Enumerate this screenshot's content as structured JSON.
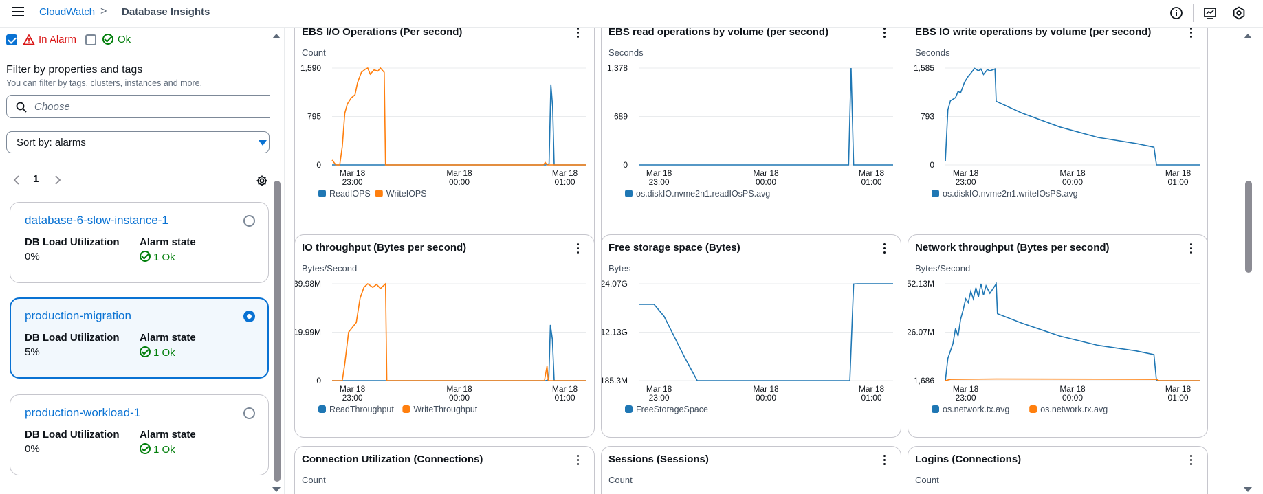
{
  "header": {
    "breadcrumb_root": "CloudWatch",
    "breadcrumb_separator": ">",
    "breadcrumb_current": "Database Insights"
  },
  "alarm_filter": {
    "in_alarm": "In Alarm",
    "in_alarm_checked": true,
    "ok": "Ok",
    "ok_checked": false
  },
  "filter": {
    "title": "Filter by properties and tags",
    "description": "You can filter by tags, clusters, instances and more.",
    "placeholder": "Choose",
    "sort_label": "Sort by: alarms"
  },
  "pagination": {
    "page": "1"
  },
  "instances": [
    {
      "name": "database-6-slow-instance-1",
      "load_header": "DB Load Utilization",
      "load_value": "0%",
      "alarm_header": "Alarm state",
      "alarm_value": "1 Ok",
      "selected": false
    },
    {
      "name": "production-migration",
      "load_header": "DB Load Utilization",
      "load_value": "5%",
      "alarm_header": "Alarm state",
      "alarm_value": "1 Ok",
      "selected": true
    },
    {
      "name": "production-workload-1",
      "load_header": "DB Load Utilization",
      "load_value": "0%",
      "alarm_header": "Alarm state",
      "alarm_value": "1 Ok",
      "selected": false
    }
  ],
  "colors": {
    "blue_series": "#1f77b4",
    "orange_series": "#ff7f0e",
    "link": "#0972d3",
    "ok": "#037f0c",
    "alarm": "#d91515"
  },
  "widgets": [
    {
      "title": "EBS I/O Operations (Per second)",
      "unit": "Count",
      "yticks": [
        "1,590",
        "795",
        "0"
      ],
      "xticks": [
        [
          "Mar 18",
          "23:00"
        ],
        [
          "Mar 18",
          "00:00"
        ],
        [
          "Mar 18",
          "01:00"
        ]
      ],
      "legend": [
        "ReadIOPS",
        "WriteIOPS"
      ]
    },
    {
      "title": "EBS read operations by volume (per second)",
      "unit": "Seconds",
      "yticks": [
        "1,378",
        "689",
        "0"
      ],
      "xticks": [
        [
          "Mar 18",
          "23:00"
        ],
        [
          "Mar 18",
          "00:00"
        ],
        [
          "Mar 18",
          "01:00"
        ]
      ],
      "legend": [
        "os.diskIO.nvme2n1.readIOsPS.avg"
      ]
    },
    {
      "title": "EBS IO write operations by volume (per second)",
      "unit": "Seconds",
      "yticks": [
        "1,585",
        "793",
        "0"
      ],
      "xticks": [
        [
          "Mar 18",
          "23:00"
        ],
        [
          "Mar 18",
          "00:00"
        ],
        [
          "Mar 18",
          "01:00"
        ]
      ],
      "legend": [
        "os.diskIO.nvme2n1.writeIOsPS.avg"
      ]
    },
    {
      "title": "IO throughput (Bytes per second)",
      "unit": "Bytes/Second",
      "yticks": [
        "39.98M",
        "19.99M",
        "0"
      ],
      "xticks": [
        [
          "Mar 18",
          "23:00"
        ],
        [
          "Mar 18",
          "00:00"
        ],
        [
          "Mar 18",
          "01:00"
        ]
      ],
      "legend": [
        "ReadThroughput",
        "WriteThroughput"
      ]
    },
    {
      "title": "Free storage space (Bytes)",
      "unit": "Bytes",
      "yticks": [
        "24.07G",
        "12.13G",
        "185.3M"
      ],
      "xticks": [
        [
          "Mar 18",
          "23:00"
        ],
        [
          "Mar 18",
          "00:00"
        ],
        [
          "Mar 18",
          "01:00"
        ]
      ],
      "legend": [
        "FreeStorageSpace"
      ]
    },
    {
      "title": "Network throughput (Bytes per second)",
      "unit": "Bytes/Second",
      "yticks": [
        "52.13M",
        "26.07M",
        "1,686"
      ],
      "xticks": [
        [
          "Mar 18",
          "23:00"
        ],
        [
          "Mar 18",
          "00:00"
        ],
        [
          "Mar 18",
          "01:00"
        ]
      ],
      "legend": [
        "os.network.tx.avg",
        "os.network.rx.avg"
      ]
    },
    {
      "title": "Connection Utilization (Connections)",
      "unit": "Count"
    },
    {
      "title": "Sessions (Sessions)",
      "unit": "Count"
    },
    {
      "title": "Logins (Connections)",
      "unit": "Count"
    }
  ],
  "chart_data": [
    {
      "type": "line",
      "title": "EBS I/O Operations (Per second)",
      "ylabel": "Count",
      "ylim": [
        0,
        1590
      ],
      "series": [
        {
          "name": "ReadIOPS",
          "color": "#1f77b4",
          "points": [
            [
              0,
              0
            ],
            [
              0.84,
              0
            ],
            [
              0.853,
              20
            ],
            [
              0.86,
              1320
            ],
            [
              0.867,
              950
            ],
            [
              0.873,
              0
            ],
            [
              1,
              0
            ]
          ]
        },
        {
          "name": "WriteIOPS",
          "color": "#ff7f0e",
          "points": [
            [
              0,
              80
            ],
            [
              0.015,
              0
            ],
            [
              0.03,
              0
            ],
            [
              0.04,
              300
            ],
            [
              0.05,
              850
            ],
            [
              0.06,
              1000
            ],
            [
              0.075,
              1100
            ],
            [
              0.09,
              1150
            ],
            [
              0.1,
              1350
            ],
            [
              0.115,
              1520
            ],
            [
              0.13,
              1570
            ],
            [
              0.14,
              1590
            ],
            [
              0.15,
              1490
            ],
            [
              0.165,
              1560
            ],
            [
              0.18,
              1540
            ],
            [
              0.19,
              1590
            ],
            [
              0.205,
              1520
            ],
            [
              0.21,
              0
            ],
            [
              0.83,
              0
            ],
            [
              0.838,
              40
            ],
            [
              0.845,
              0
            ],
            [
              1,
              0
            ]
          ]
        }
      ]
    },
    {
      "type": "line",
      "title": "EBS read operations by volume (per second)",
      "ylabel": "Seconds",
      "ylim": [
        0,
        1378
      ],
      "series": [
        {
          "name": "os.diskIO.nvme2n1.readIOsPS.avg",
          "color": "#1f77b4",
          "points": [
            [
              0,
              0
            ],
            [
              0.825,
              0
            ],
            [
              0.835,
              1378
            ],
            [
              0.845,
              0
            ],
            [
              1,
              0
            ]
          ]
        }
      ]
    },
    {
      "type": "line",
      "title": "EBS IO write operations by volume (per second)",
      "ylabel": "Seconds",
      "ylim": [
        0,
        1585
      ],
      "series": [
        {
          "name": "os.diskIO.nvme2n1.writeIOsPS.avg",
          "color": "#1f77b4",
          "points": [
            [
              0,
              60
            ],
            [
              0.01,
              900
            ],
            [
              0.02,
              1050
            ],
            [
              0.04,
              1100
            ],
            [
              0.05,
              1200
            ],
            [
              0.06,
              1180
            ],
            [
              0.075,
              1350
            ],
            [
              0.09,
              1450
            ],
            [
              0.1,
              1500
            ],
            [
              0.115,
              1580
            ],
            [
              0.13,
              1540
            ],
            [
              0.14,
              1570
            ],
            [
              0.15,
              1480
            ],
            [
              0.165,
              1560
            ],
            [
              0.175,
              1540
            ],
            [
              0.195,
              1570
            ],
            [
              0.2,
              1040
            ],
            [
              0.3,
              850
            ],
            [
              0.45,
              620
            ],
            [
              0.6,
              450
            ],
            [
              0.75,
              350
            ],
            [
              0.82,
              290
            ],
            [
              0.83,
              0
            ],
            [
              1,
              0
            ]
          ]
        }
      ]
    },
    {
      "type": "line",
      "title": "IO throughput (Bytes per second)",
      "ylabel": "Bytes/Second",
      "ylim": [
        0,
        39980000
      ],
      "series": [
        {
          "name": "ReadThroughput",
          "color": "#1f77b4",
          "points": [
            [
              0,
              0
            ],
            [
              0.84,
              0
            ],
            [
              0.852,
              400000
            ],
            [
              0.858,
              23000000
            ],
            [
              0.866,
              17000000
            ],
            [
              0.873,
              0
            ],
            [
              1,
              0
            ]
          ]
        },
        {
          "name": "WriteThroughput",
          "color": "#ff7f0e",
          "points": [
            [
              0,
              0
            ],
            [
              0.04,
              0
            ],
            [
              0.05,
              7000000
            ],
            [
              0.065,
              20000000
            ],
            [
              0.08,
              22000000
            ],
            [
              0.095,
              24000000
            ],
            [
              0.11,
              34000000
            ],
            [
              0.125,
              38500000
            ],
            [
              0.14,
              39980000
            ],
            [
              0.16,
              38500000
            ],
            [
              0.175,
              39700000
            ],
            [
              0.19,
              38000000
            ],
            [
              0.21,
              39980000
            ],
            [
              0.215,
              0
            ],
            [
              0.835,
              0
            ],
            [
              0.845,
              6000000
            ],
            [
              0.85,
              0
            ],
            [
              1,
              0
            ]
          ]
        }
      ]
    },
    {
      "type": "line",
      "title": "Free storage space (Bytes)",
      "ylabel": "Bytes",
      "ylim": [
        185300000,
        24070000000
      ],
      "series": [
        {
          "name": "FreeStorageSpace",
          "color": "#1f77b4",
          "points": [
            [
              0,
              19000000000
            ],
            [
              0.06,
              19000000000
            ],
            [
              0.1,
              16000000000
            ],
            [
              0.14,
              11000000000
            ],
            [
              0.18,
              6000000000
            ],
            [
              0.23,
              185300000
            ],
            [
              0.83,
              185300000
            ],
            [
              0.845,
              24000000000
            ],
            [
              0.86,
              24070000000
            ],
            [
              1,
              24070000000
            ]
          ]
        }
      ]
    },
    {
      "type": "line",
      "title": "Network throughput (Bytes per second)",
      "ylabel": "Bytes/Second",
      "ylim": [
        1686,
        52130000
      ],
      "series": [
        {
          "name": "os.network.tx.avg",
          "color": "#1f77b4",
          "points": [
            [
              0,
              1686
            ],
            [
              0.01,
              12000000
            ],
            [
              0.03,
              20000000
            ],
            [
              0.04,
              28000000
            ],
            [
              0.05,
              24000000
            ],
            [
              0.06,
              33000000
            ],
            [
              0.07,
              38000000
            ],
            [
              0.08,
              44000000
            ],
            [
              0.09,
              42000000
            ],
            [
              0.1,
              48000000
            ],
            [
              0.11,
              44000000
            ],
            [
              0.12,
              50000000
            ],
            [
              0.13,
              45000000
            ],
            [
              0.14,
              52130000
            ],
            [
              0.15,
              46000000
            ],
            [
              0.16,
              51000000
            ],
            [
              0.175,
              47000000
            ],
            [
              0.2,
              52130000
            ],
            [
              0.205,
              36000000
            ],
            [
              0.3,
              31000000
            ],
            [
              0.45,
              24000000
            ],
            [
              0.6,
              19000000
            ],
            [
              0.75,
              16000000
            ],
            [
              0.82,
              14000000
            ],
            [
              0.83,
              1686
            ],
            [
              1,
              1686
            ]
          ]
        },
        {
          "name": "os.network.rx.avg",
          "color": "#ff7f0e",
          "points": [
            [
              0,
              1686
            ],
            [
              0.02,
              700000
            ],
            [
              0.2,
              900000
            ],
            [
              0.6,
              800000
            ],
            [
              0.83,
              700000
            ],
            [
              0.84,
              1686
            ],
            [
              1,
              1686
            ]
          ]
        }
      ]
    }
  ]
}
